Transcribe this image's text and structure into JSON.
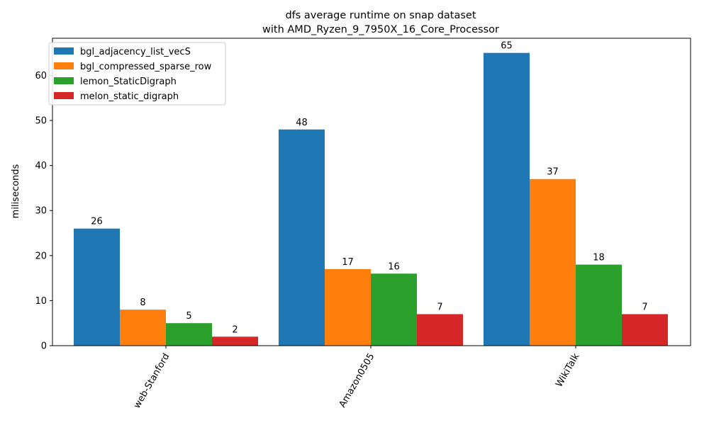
{
  "chart_data": {
    "type": "bar",
    "title": "dfs average runtime on snap dataset",
    "subtitle": "with AMD_Ryzen_9_7950X_16_Core_Processor",
    "xlabel": "",
    "ylabel": "miliseconds",
    "ylim": [
      0,
      68.25
    ],
    "yticks": [
      0,
      10,
      20,
      30,
      40,
      50,
      60
    ],
    "categories": [
      "web-Stanford",
      "Amazon0505",
      "WikiTalk"
    ],
    "series": [
      {
        "name": "bgl_adjacency_list_vecS",
        "color": "#1f77b4",
        "values": [
          26,
          48,
          65
        ]
      },
      {
        "name": "bgl_compressed_sparse_row",
        "color": "#ff7f0e",
        "values": [
          8,
          17,
          37
        ]
      },
      {
        "name": "lemon_StaticDigraph",
        "color": "#2ca02c",
        "values": [
          5,
          16,
          18
        ]
      },
      {
        "name": "melon_static_digraph",
        "color": "#d62728",
        "values": [
          2,
          7,
          7
        ]
      }
    ],
    "legend_position": "top-left",
    "grid": false,
    "x_tick_rotation": 60
  }
}
